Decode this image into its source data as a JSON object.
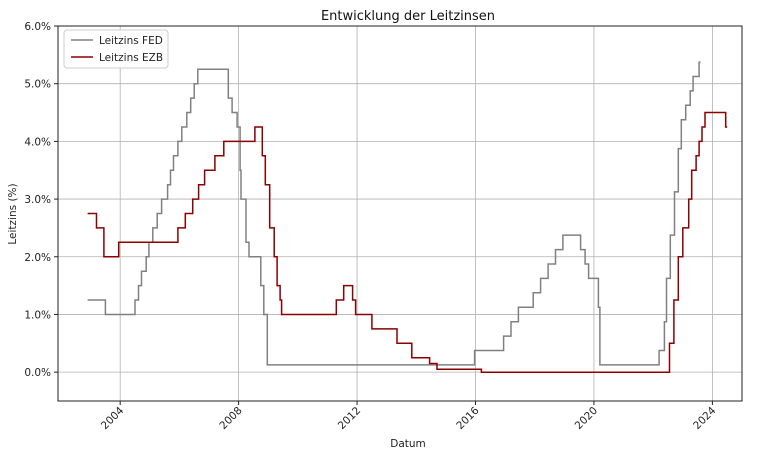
{
  "chart_data": {
    "type": "line",
    "title": "Entwicklung der Leitzinsen",
    "xlabel": "Datum",
    "ylabel": "Leitzins (%)",
    "xlim": [
      2001.9,
      2025.0
    ],
    "ylim": [
      -0.5,
      6.0
    ],
    "x_ticks": [
      2004,
      2008,
      2012,
      2016,
      2020,
      2024
    ],
    "x_tick_labels": [
      "2004",
      "2008",
      "2012",
      "2016",
      "2020",
      "2024"
    ],
    "y_ticks": [
      0,
      1,
      2,
      3,
      4,
      5,
      6
    ],
    "y_tick_labels": [
      "0.0%",
      "1.0%",
      "2.0%",
      "3.0%",
      "4.0%",
      "5.0%",
      "6.0%"
    ],
    "grid": true,
    "legend_position": "top-left",
    "series": [
      {
        "name": "Leitzins FED",
        "color": "#808080",
        "step": true,
        "points": [
          [
            2002.9,
            1.25
          ],
          [
            2003.5,
            1.0
          ],
          [
            2004.5,
            1.25
          ],
          [
            2004.62,
            1.5
          ],
          [
            2004.72,
            1.75
          ],
          [
            2004.88,
            2.0
          ],
          [
            2004.97,
            2.25
          ],
          [
            2005.1,
            2.5
          ],
          [
            2005.25,
            2.75
          ],
          [
            2005.4,
            3.0
          ],
          [
            2005.6,
            3.25
          ],
          [
            2005.7,
            3.5
          ],
          [
            2005.8,
            3.75
          ],
          [
            2005.95,
            4.0
          ],
          [
            2006.08,
            4.25
          ],
          [
            2006.25,
            4.5
          ],
          [
            2006.38,
            4.75
          ],
          [
            2006.5,
            5.0
          ],
          [
            2006.62,
            5.25
          ],
          [
            2007.65,
            4.75
          ],
          [
            2007.78,
            4.5
          ],
          [
            2007.95,
            4.25
          ],
          [
            2008.05,
            3.5
          ],
          [
            2008.08,
            3.0
          ],
          [
            2008.25,
            2.25
          ],
          [
            2008.35,
            2.0
          ],
          [
            2008.75,
            1.5
          ],
          [
            2008.85,
            1.0
          ],
          [
            2008.97,
            0.125
          ],
          [
            2015.97,
            0.375
          ],
          [
            2016.95,
            0.625
          ],
          [
            2017.2,
            0.875
          ],
          [
            2017.45,
            1.125
          ],
          [
            2017.95,
            1.375
          ],
          [
            2018.2,
            1.625
          ],
          [
            2018.45,
            1.875
          ],
          [
            2018.7,
            2.125
          ],
          [
            2018.95,
            2.375
          ],
          [
            2019.55,
            2.125
          ],
          [
            2019.7,
            1.875
          ],
          [
            2019.82,
            1.625
          ],
          [
            2020.15,
            1.125
          ],
          [
            2020.2,
            0.125
          ],
          [
            2022.2,
            0.375
          ],
          [
            2022.38,
            0.875
          ],
          [
            2022.45,
            1.625
          ],
          [
            2022.58,
            2.375
          ],
          [
            2022.72,
            3.125
          ],
          [
            2022.85,
            3.875
          ],
          [
            2022.95,
            4.375
          ],
          [
            2023.1,
            4.625
          ],
          [
            2023.25,
            4.875
          ],
          [
            2023.35,
            5.125
          ],
          [
            2023.55,
            5.375
          ],
          [
            2023.6,
            5.375
          ]
        ]
      },
      {
        "name": "Leitzins EZB",
        "color": "#8b0000",
        "step": true,
        "points": [
          [
            2002.9,
            2.75
          ],
          [
            2003.2,
            2.5
          ],
          [
            2003.45,
            2.0
          ],
          [
            2003.95,
            2.25
          ],
          [
            2005.95,
            2.5
          ],
          [
            2006.2,
            2.75
          ],
          [
            2006.45,
            3.0
          ],
          [
            2006.65,
            3.25
          ],
          [
            2006.85,
            3.5
          ],
          [
            2007.2,
            3.75
          ],
          [
            2007.5,
            4.0
          ],
          [
            2008.55,
            4.25
          ],
          [
            2008.8,
            3.75
          ],
          [
            2008.9,
            3.25
          ],
          [
            2009.05,
            2.5
          ],
          [
            2009.2,
            2.0
          ],
          [
            2009.3,
            1.5
          ],
          [
            2009.4,
            1.25
          ],
          [
            2009.45,
            1.0
          ],
          [
            2011.3,
            1.25
          ],
          [
            2011.55,
            1.5
          ],
          [
            2011.85,
            1.25
          ],
          [
            2011.95,
            1.0
          ],
          [
            2012.5,
            0.75
          ],
          [
            2013.35,
            0.5
          ],
          [
            2013.85,
            0.25
          ],
          [
            2014.45,
            0.15
          ],
          [
            2014.7,
            0.05
          ],
          [
            2016.2,
            0.0
          ],
          [
            2022.55,
            0.5
          ],
          [
            2022.7,
            1.25
          ],
          [
            2022.85,
            2.0
          ],
          [
            2023.0,
            2.5
          ],
          [
            2023.2,
            3.0
          ],
          [
            2023.3,
            3.5
          ],
          [
            2023.45,
            3.75
          ],
          [
            2023.55,
            4.0
          ],
          [
            2023.65,
            4.25
          ],
          [
            2023.75,
            4.5
          ],
          [
            2024.45,
            4.25
          ],
          [
            2024.5,
            4.25
          ]
        ]
      }
    ]
  }
}
